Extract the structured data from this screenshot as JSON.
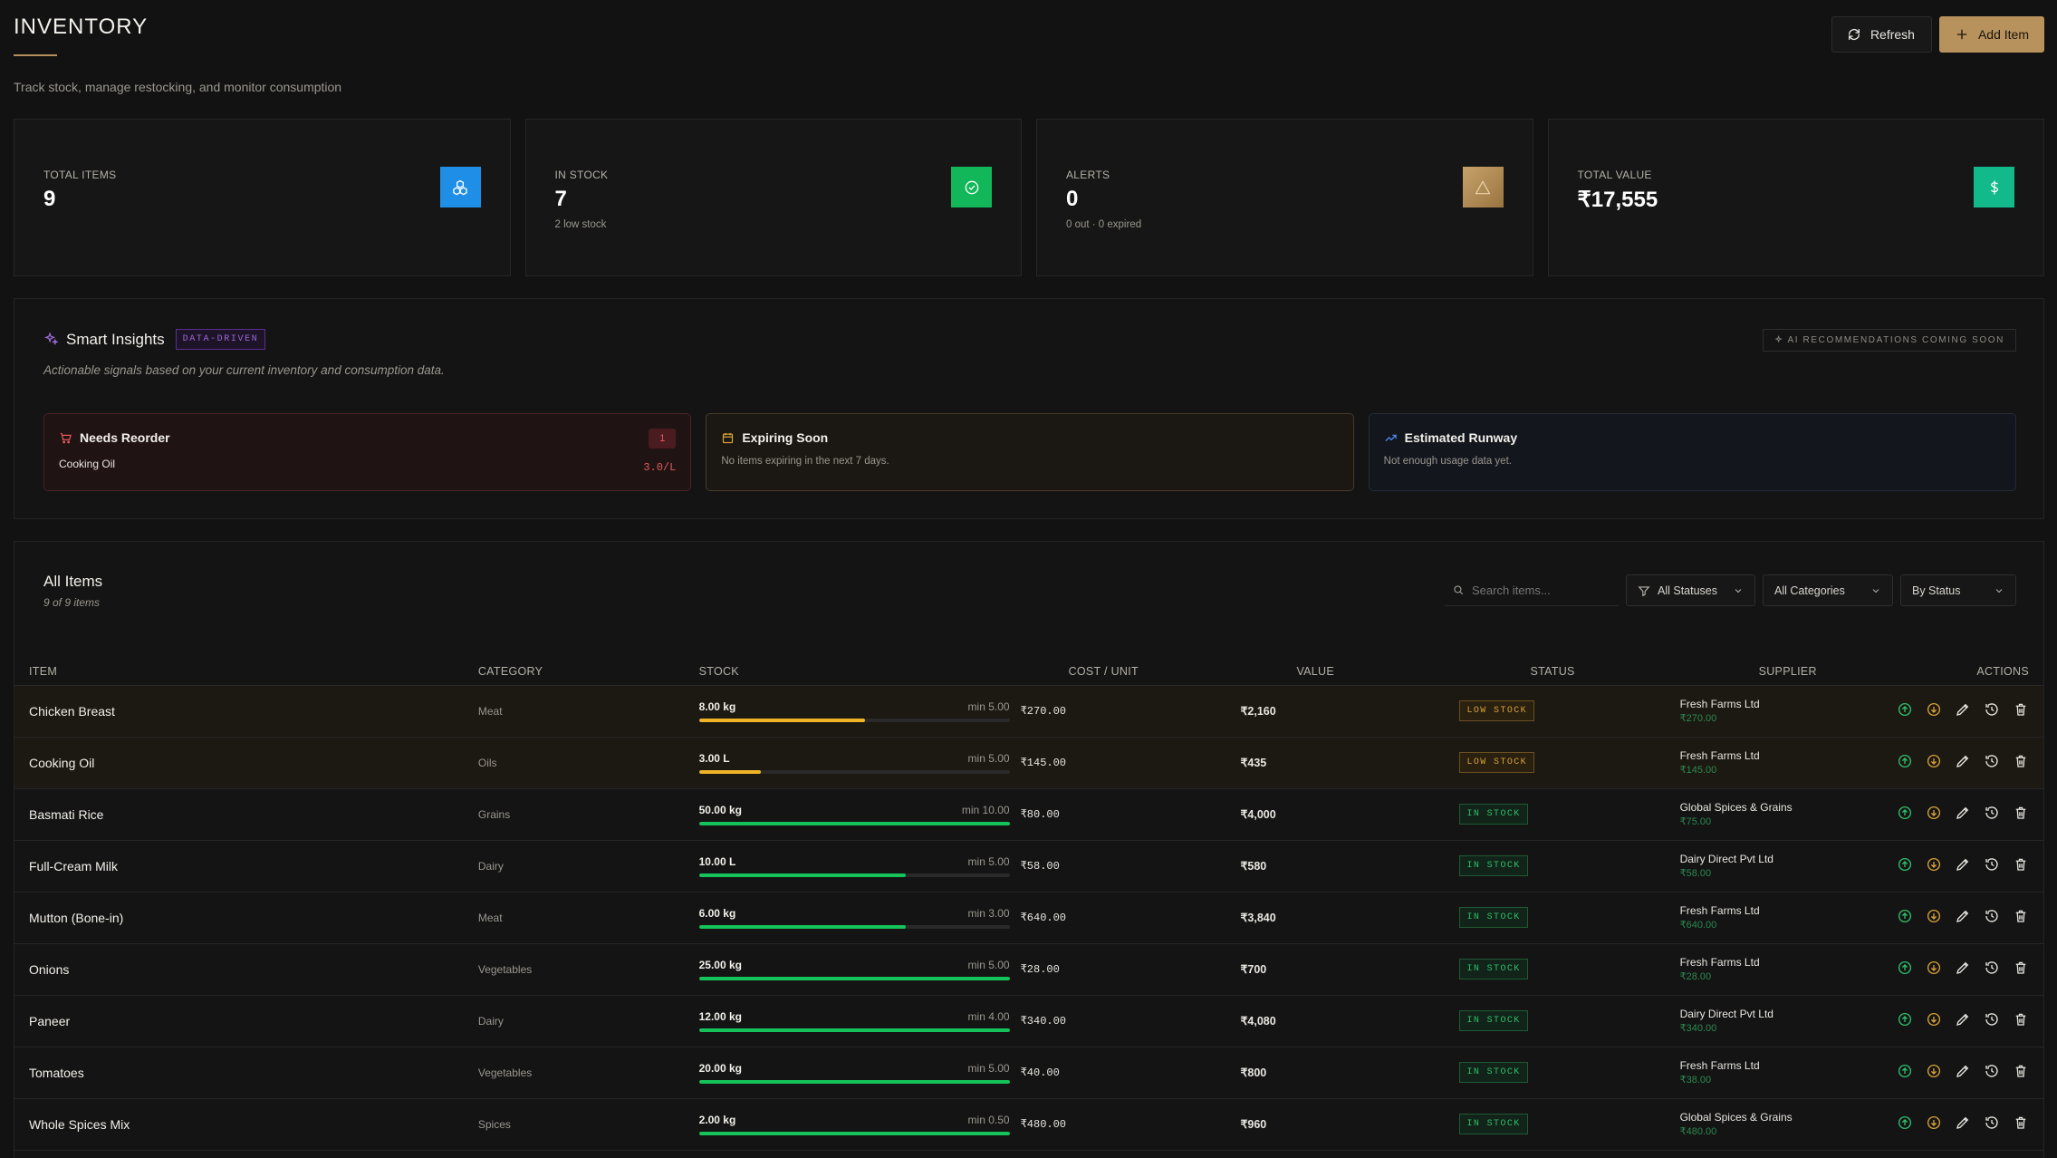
{
  "header": {
    "title": "INVENTORY",
    "subtitle": "Track stock, manage restocking, and monitor consumption",
    "refresh_label": "Refresh",
    "add_label": "Add Item"
  },
  "stats": [
    {
      "label": "TOTAL ITEMS",
      "value": "9",
      "sub": "",
      "icon": "boxes-icon",
      "color": "#1e8ee6"
    },
    {
      "label": "IN STOCK",
      "value": "7",
      "sub": "2 low stock",
      "icon": "check-circle-icon",
      "color": "#12b75a"
    },
    {
      "label": "ALERTS",
      "value": "0",
      "sub": "0 out · 0 expired",
      "icon": "warning-triangle-icon",
      "color": "#b8925c"
    },
    {
      "label": "TOTAL VALUE",
      "value": "₹17,555",
      "sub": "",
      "icon": "dollar-icon",
      "color": "#12b98a"
    }
  ],
  "insights": {
    "title": "Smart Insights",
    "badge": "DATA-DRIVEN",
    "ai_badge": "AI RECOMMENDATIONS COMING SOON",
    "description": "Actionable signals based on your current inventory and consumption data.",
    "reorder": {
      "title": "Needs Reorder",
      "count": "1",
      "item": "Cooking Oil",
      "qty": "3.0/L"
    },
    "expiring": {
      "title": "Expiring Soon",
      "body": "No items expiring in the next 7 days."
    },
    "runway": {
      "title": "Estimated Runway",
      "body": "Not enough usage data yet."
    }
  },
  "items": {
    "title": "All Items",
    "count": "9 of 9 items",
    "search_placeholder": "Search items...",
    "filter_status": "All Statuses",
    "filter_category": "All Categories",
    "sort": "By Status",
    "columns": [
      "ITEM",
      "CATEGORY",
      "STOCK",
      "COST / UNIT",
      "VALUE",
      "STATUS",
      "SUPPLIER",
      "ACTIONS"
    ],
    "rows": [
      {
        "name": "Chicken Breast",
        "category": "Meat",
        "qty": "8.00 kg",
        "min": "min 5.00",
        "level": 0.535,
        "cost": "₹270.00",
        "value": "₹2,160",
        "status": "LOW STOCK",
        "low": true,
        "supplier": "Fresh Farms Ltd",
        "supplier_price": "₹270.00"
      },
      {
        "name": "Cooking Oil",
        "category": "Oils",
        "qty": "3.00 L",
        "min": "min 5.00",
        "level": 0.2,
        "cost": "₹145.00",
        "value": "₹435",
        "status": "LOW STOCK",
        "low": true,
        "supplier": "Fresh Farms Ltd",
        "supplier_price": "₹145.00"
      },
      {
        "name": "Basmati Rice",
        "category": "Grains",
        "qty": "50.00 kg",
        "min": "min 10.00",
        "level": 1.0,
        "cost": "₹80.00",
        "value": "₹4,000",
        "status": "IN STOCK",
        "low": false,
        "supplier": "Global Spices & Grains",
        "supplier_price": "₹75.00"
      },
      {
        "name": "Full-Cream Milk",
        "category": "Dairy",
        "qty": "10.00 L",
        "min": "min 5.00",
        "level": 0.667,
        "cost": "₹58.00",
        "value": "₹580",
        "status": "IN STOCK",
        "low": false,
        "supplier": "Dairy Direct Pvt Ltd",
        "supplier_price": "₹58.00"
      },
      {
        "name": "Mutton (Bone-in)",
        "category": "Meat",
        "qty": "6.00 kg",
        "min": "min 3.00",
        "level": 0.667,
        "cost": "₹640.00",
        "value": "₹3,840",
        "status": "IN STOCK",
        "low": false,
        "supplier": "Fresh Farms Ltd",
        "supplier_price": "₹640.00"
      },
      {
        "name": "Onions",
        "category": "Vegetables",
        "qty": "25.00 kg",
        "min": "min 5.00",
        "level": 1.0,
        "cost": "₹28.00",
        "value": "₹700",
        "status": "IN STOCK",
        "low": false,
        "supplier": "Fresh Farms Ltd",
        "supplier_price": "₹28.00"
      },
      {
        "name": "Paneer",
        "category": "Dairy",
        "qty": "12.00 kg",
        "min": "min 4.00",
        "level": 1.0,
        "cost": "₹340.00",
        "value": "₹4,080",
        "status": "IN STOCK",
        "low": false,
        "supplier": "Dairy Direct Pvt Ltd",
        "supplier_price": "₹340.00"
      },
      {
        "name": "Tomatoes",
        "category": "Vegetables",
        "qty": "20.00 kg",
        "min": "min 5.00",
        "level": 1.0,
        "cost": "₹40.00",
        "value": "₹800",
        "status": "IN STOCK",
        "low": false,
        "supplier": "Fresh Farms Ltd",
        "supplier_price": "₹38.00"
      },
      {
        "name": "Whole Spices Mix",
        "category": "Spices",
        "qty": "2.00 kg",
        "min": "min 0.50",
        "level": 1.0,
        "cost": "₹480.00",
        "value": "₹960",
        "status": "IN STOCK",
        "low": false,
        "supplier": "Global Spices & Grains",
        "supplier_price": "₹480.00"
      }
    ]
  },
  "colors": {
    "accent": "#b8925c",
    "low": "#f0b429",
    "ok": "#16c25a",
    "danger": "#e05a5a"
  }
}
